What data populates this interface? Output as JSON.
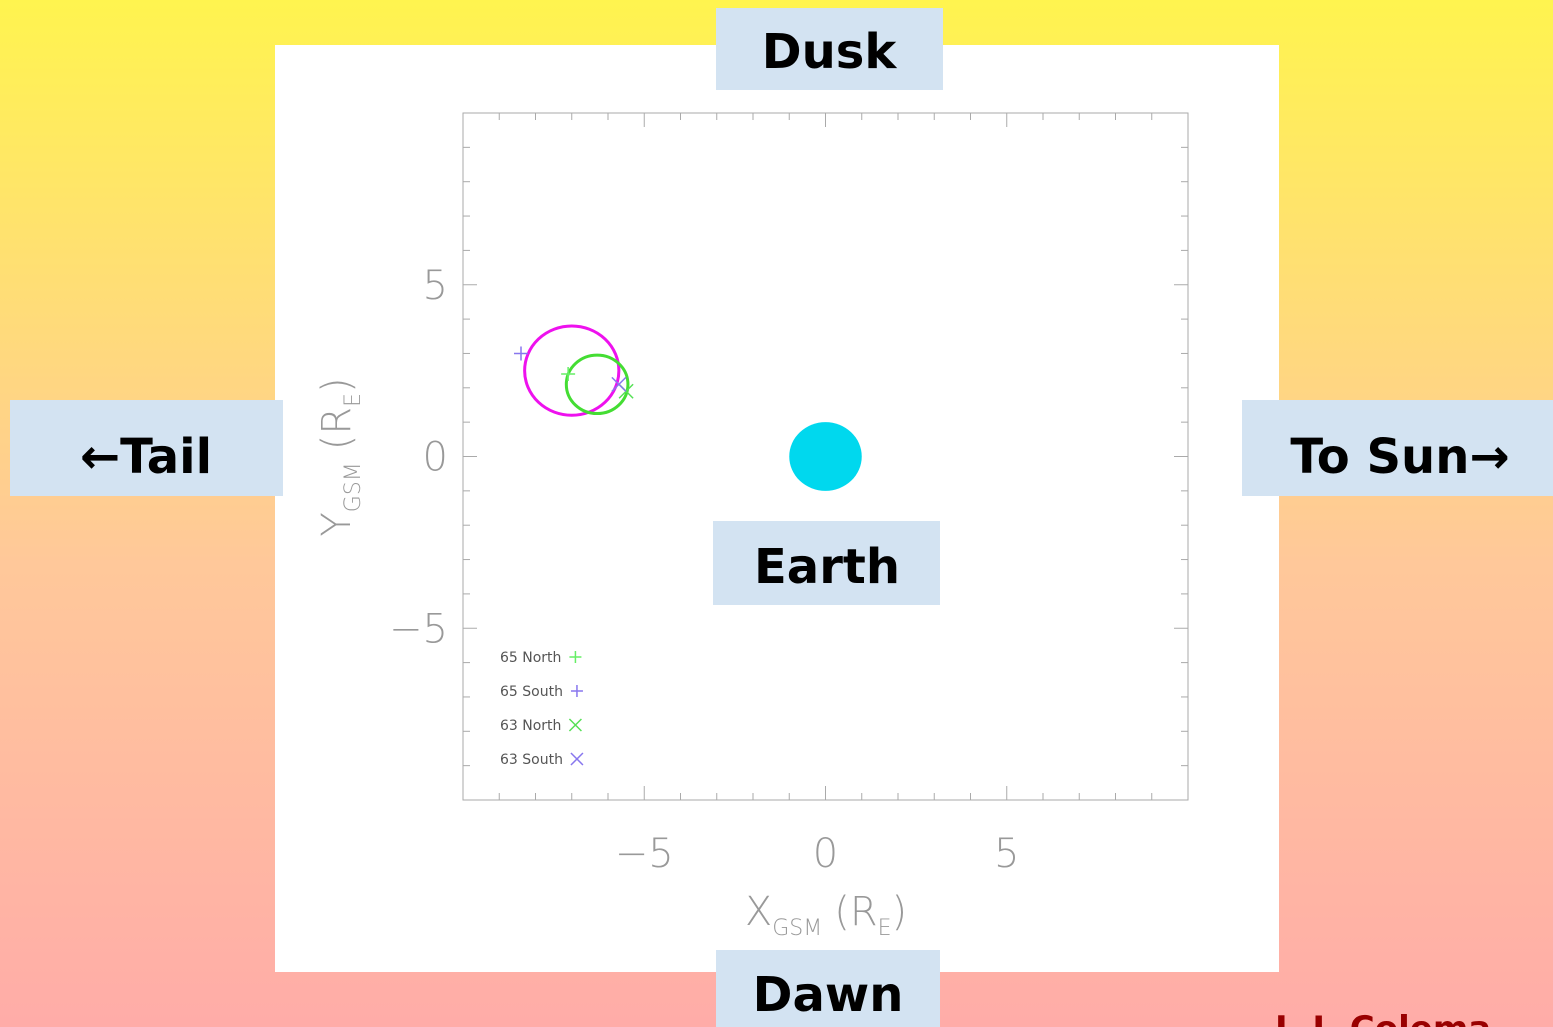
{
  "chart_data": {
    "type": "scatter",
    "labels": {
      "top": "Dusk",
      "bottom": "Dawn",
      "left": "←Tail",
      "right": "To Sun→",
      "center": "Earth"
    },
    "author": "I. J. Colema",
    "xlabel": [
      "X",
      "GSM",
      "(R",
      "E",
      ")"
    ],
    "ylabel": [
      "Y",
      "GSM",
      "(R",
      "E",
      ")"
    ],
    "xlim": [
      -10,
      10
    ],
    "ylim": [
      -10,
      10
    ],
    "xticks": [
      {
        "value": -5,
        "label": "−5"
      },
      0,
      5
    ],
    "yticks": [
      {
        "value": -5,
        "label": "−5"
      },
      0,
      5
    ],
    "xminorticks": [
      -9,
      -8,
      -7,
      -6,
      -4,
      -3,
      -2,
      -1,
      1,
      2,
      3,
      4,
      6,
      7,
      8,
      9
    ],
    "yminorticks": [
      -9,
      -8,
      -7,
      -6,
      -4,
      -3,
      -2,
      -1,
      1,
      2,
      3,
      4,
      6,
      7,
      8,
      9
    ],
    "series": [
      {
        "name": "65 North",
        "marker": "plus",
        "color": "#66ee66",
        "x": [
          -7.1
        ],
        "y": [
          2.4
        ]
      },
      {
        "name": "65 South",
        "marker": "plus",
        "color": "#8877ee",
        "x": [
          -8.4
        ],
        "y": [
          3.0
        ]
      },
      {
        "name": "63 North",
        "marker": "x",
        "color": "#55e055",
        "x": [
          -5.5
        ],
        "y": [
          1.9
        ]
      },
      {
        "name": "63 South",
        "marker": "x",
        "color": "#8877ee",
        "x": [
          -5.7
        ],
        "y": [
          2.1
        ]
      }
    ],
    "circles": [
      {
        "x": -7.0,
        "y": 2.5,
        "r": 1.3,
        "color": "#ee11ee",
        "filled": false
      },
      {
        "x": -6.3,
        "y": 2.1,
        "r": 0.85,
        "color": "#44dd33",
        "filled": false
      },
      {
        "x": 0,
        "y": 0,
        "r": 1,
        "color": "#00d8ee",
        "filled": true
      }
    ]
  }
}
